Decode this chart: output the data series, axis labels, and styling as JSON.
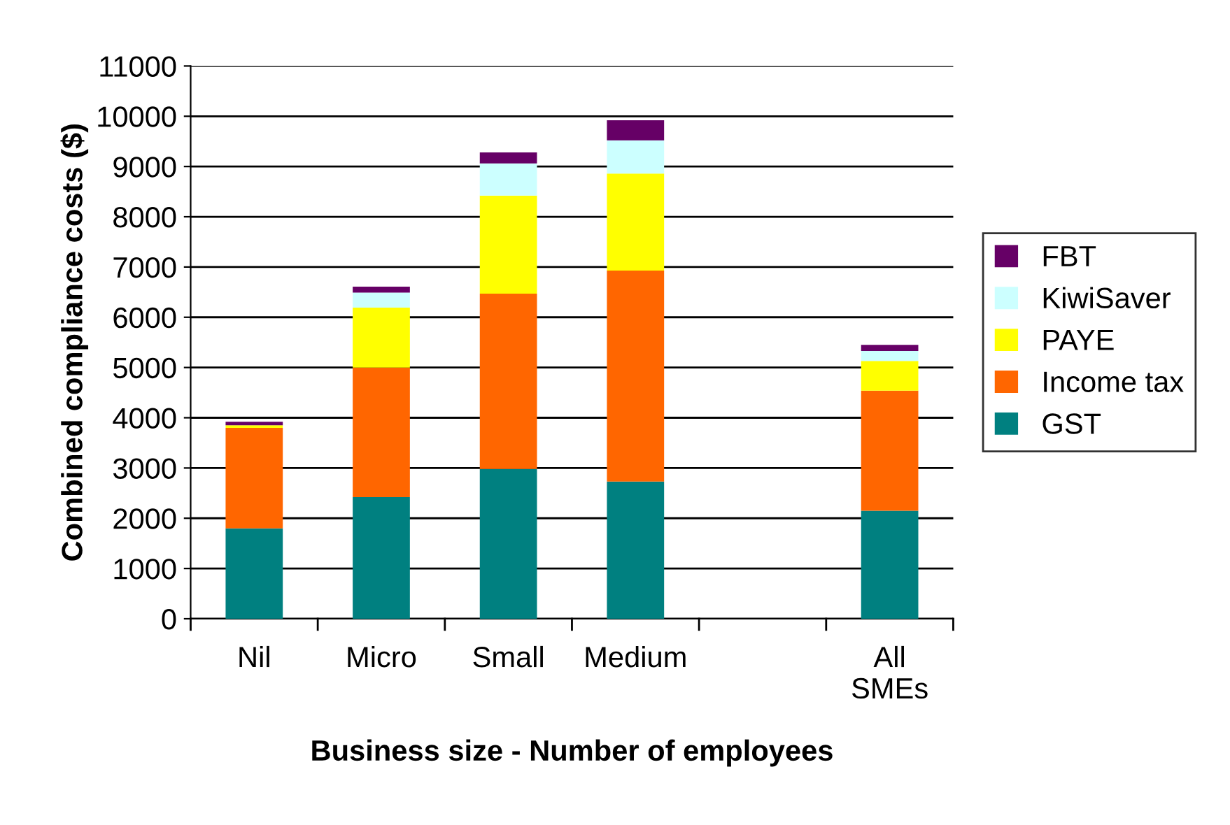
{
  "chart_data": {
    "type": "bar",
    "stacked": true,
    "xlabel": "Business size - Number of employees",
    "ylabel": "Combined compliance costs ($)",
    "categories": [
      "Nil",
      "Micro",
      "Small",
      "Medium",
      null,
      "All\nSMEs"
    ],
    "series": [
      {
        "name": "GST",
        "color": "#008080",
        "values": [
          1800,
          2420,
          2980,
          2730,
          null,
          2150
        ]
      },
      {
        "name": "Income tax",
        "color": "#ff6600",
        "values": [
          2000,
          2580,
          3490,
          4200,
          null,
          2390
        ]
      },
      {
        "name": "PAYE",
        "color": "#ffff00",
        "values": [
          50,
          1190,
          1950,
          1930,
          null,
          590
        ]
      },
      {
        "name": "KiwiSaver",
        "color": "#ccffff",
        "values": [
          null,
          300,
          640,
          660,
          null,
          200
        ]
      },
      {
        "name": "FBT",
        "color": "#660066",
        "values": [
          70,
          120,
          220,
          400,
          null,
          120
        ]
      }
    ],
    "ylim": [
      0,
      11000
    ],
    "yticks": [
      0,
      1000,
      2000,
      3000,
      4000,
      5000,
      6000,
      7000,
      8000,
      9000,
      10000,
      11000
    ],
    "grid": "y",
    "legend": "right"
  }
}
